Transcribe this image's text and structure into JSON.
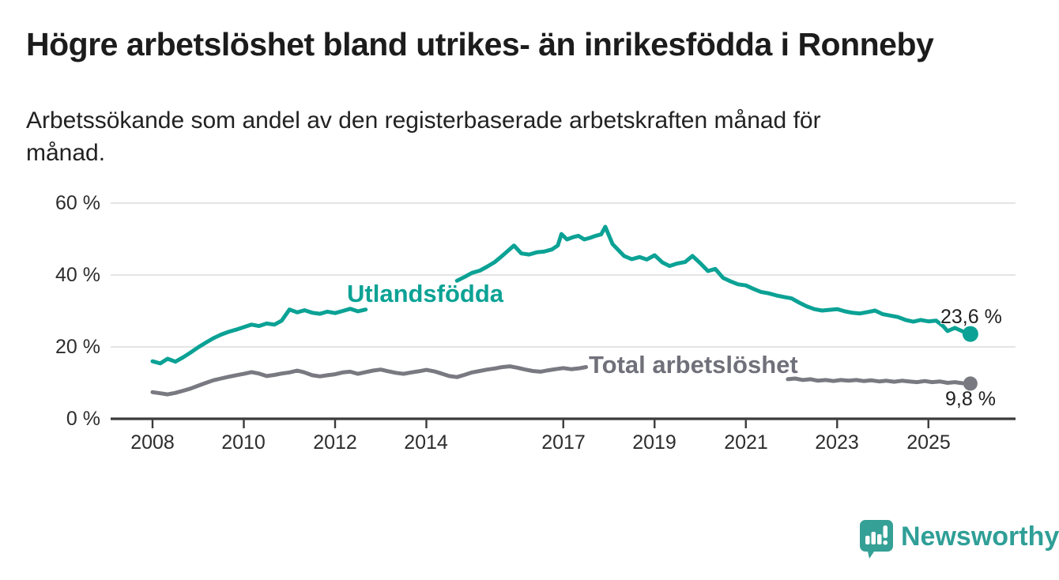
{
  "title": "Högre arbetslöshet bland utrikes- än inrikesfödda i Ronneby",
  "subtitle_lines": [
    "Arbetssökande som andel av den registerbaserade arbetskraften månad för",
    "månad."
  ],
  "branding": {
    "logo_text": "Newsworthy",
    "logo_icon": "speech-bubble-bar-chart-icon",
    "logo_color": "#35a096"
  },
  "colors": {
    "teal_series": "#0ba295",
    "gray_series": "#797981",
    "grid": "#dcdcdc",
    "axis": "#3b3b3b",
    "text": "#2d2d2d"
  },
  "chart_data": {
    "type": "line",
    "title": "Högre arbetslöshet bland utrikes- än inrikesfödda i Ronneby",
    "subtitle": "Arbetssökande som andel av den registerbaserade arbetskraften månad för månad.",
    "unit": "%",
    "grid": true,
    "x_range": [
      2007.1,
      2026.9
    ],
    "y_range": [
      0,
      60
    ],
    "y_ticks": [
      0,
      20,
      40,
      60
    ],
    "y_tick_labels": [
      "0 %",
      "20 %",
      "40 %",
      "60 %"
    ],
    "x_ticks": [
      2008,
      2010,
      2012,
      2014,
      2017,
      2019,
      2021,
      2023,
      2025
    ],
    "series": [
      {
        "name": "Utlandsfödda",
        "color": "#0ba295",
        "end_value": 23.6,
        "end_label": "23,6 %",
        "segments": [
          [
            [
              2008.0,
              16.0
            ],
            [
              2008.17,
              15.4
            ],
            [
              2008.33,
              16.7
            ],
            [
              2008.5,
              15.9
            ],
            [
              2008.67,
              17.1
            ],
            [
              2008.83,
              18.4
            ],
            [
              2009.0,
              19.9
            ],
            [
              2009.17,
              21.2
            ],
            [
              2009.33,
              22.4
            ],
            [
              2009.5,
              23.4
            ],
            [
              2009.67,
              24.2
            ],
            [
              2009.83,
              24.8
            ],
            [
              2010.0,
              25.5
            ],
            [
              2010.17,
              26.2
            ],
            [
              2010.33,
              25.8
            ],
            [
              2010.5,
              26.5
            ],
            [
              2010.67,
              26.2
            ],
            [
              2010.83,
              27.3
            ],
            [
              2011.0,
              30.4
            ],
            [
              2011.17,
              29.6
            ],
            [
              2011.33,
              30.2
            ],
            [
              2011.5,
              29.5
            ],
            [
              2011.67,
              29.2
            ],
            [
              2011.83,
              29.8
            ],
            [
              2012.0,
              29.4
            ],
            [
              2012.17,
              30.0
            ],
            [
              2012.33,
              30.6
            ],
            [
              2012.5,
              29.9
            ],
            [
              2012.67,
              30.4
            ]
          ],
          [
            [
              2014.67,
              38.4
            ],
            [
              2014.83,
              39.4
            ],
            [
              2015.0,
              40.6
            ],
            [
              2015.17,
              41.2
            ],
            [
              2015.33,
              42.3
            ],
            [
              2015.5,
              43.6
            ],
            [
              2015.67,
              45.4
            ],
            [
              2015.83,
              47.2
            ],
            [
              2015.92,
              48.2
            ],
            [
              2016.08,
              46.0
            ],
            [
              2016.25,
              45.7
            ],
            [
              2016.42,
              46.3
            ],
            [
              2016.58,
              46.5
            ],
            [
              2016.75,
              47.1
            ],
            [
              2016.88,
              48.2
            ],
            [
              2016.96,
              51.4
            ],
            [
              2017.08,
              49.9
            ],
            [
              2017.21,
              50.5
            ],
            [
              2017.33,
              50.9
            ],
            [
              2017.46,
              49.9
            ],
            [
              2017.58,
              50.3
            ],
            [
              2017.71,
              50.9
            ],
            [
              2017.83,
              51.3
            ],
            [
              2017.92,
              53.4
            ],
            [
              2018.08,
              48.6
            ],
            [
              2018.21,
              46.9
            ],
            [
              2018.33,
              45.3
            ],
            [
              2018.5,
              44.4
            ],
            [
              2018.67,
              45.0
            ],
            [
              2018.83,
              44.3
            ],
            [
              2019.0,
              45.5
            ],
            [
              2019.17,
              43.5
            ],
            [
              2019.33,
              42.5
            ],
            [
              2019.5,
              43.2
            ],
            [
              2019.67,
              43.6
            ],
            [
              2019.83,
              45.3
            ],
            [
              2020.0,
              43.3
            ],
            [
              2020.17,
              41.1
            ],
            [
              2020.33,
              41.7
            ],
            [
              2020.5,
              39.2
            ],
            [
              2020.67,
              38.2
            ],
            [
              2020.83,
              37.4
            ],
            [
              2021.0,
              37.1
            ],
            [
              2021.17,
              36.1
            ],
            [
              2021.33,
              35.3
            ],
            [
              2021.5,
              34.9
            ],
            [
              2021.67,
              34.3
            ],
            [
              2021.83,
              33.9
            ],
            [
              2022.0,
              33.5
            ],
            [
              2022.17,
              32.3
            ],
            [
              2022.33,
              31.3
            ],
            [
              2022.5,
              30.5
            ],
            [
              2022.67,
              30.1
            ],
            [
              2022.83,
              30.3
            ],
            [
              2023.0,
              30.5
            ],
            [
              2023.17,
              29.9
            ],
            [
              2023.33,
              29.5
            ],
            [
              2023.5,
              29.3
            ],
            [
              2023.67,
              29.7
            ],
            [
              2023.83,
              30.1
            ],
            [
              2024.0,
              29.1
            ],
            [
              2024.17,
              28.7
            ],
            [
              2024.33,
              28.3
            ],
            [
              2024.5,
              27.5
            ],
            [
              2024.67,
              27.0
            ],
            [
              2024.83,
              27.5
            ],
            [
              2025.0,
              27.1
            ],
            [
              2025.17,
              27.3
            ],
            [
              2025.33,
              25.7
            ],
            [
              2025.42,
              24.4
            ],
            [
              2025.58,
              25.3
            ],
            [
              2025.75,
              24.3
            ],
            [
              2025.92,
              23.6
            ]
          ]
        ]
      },
      {
        "name": "Total arbetslöshet",
        "color": "#797981",
        "end_value": 9.8,
        "end_label": "9,8 %",
        "segments": [
          [
            [
              2008.0,
              7.4
            ],
            [
              2008.17,
              7.1
            ],
            [
              2008.33,
              6.8
            ],
            [
              2008.5,
              7.2
            ],
            [
              2008.67,
              7.8
            ],
            [
              2008.83,
              8.4
            ],
            [
              2009.0,
              9.2
            ],
            [
              2009.17,
              10.0
            ],
            [
              2009.33,
              10.7
            ],
            [
              2009.5,
              11.2
            ],
            [
              2009.67,
              11.7
            ],
            [
              2009.83,
              12.1
            ],
            [
              2010.0,
              12.5
            ],
            [
              2010.17,
              13.0
            ],
            [
              2010.33,
              12.6
            ],
            [
              2010.5,
              11.9
            ],
            [
              2010.67,
              12.2
            ],
            [
              2010.83,
              12.6
            ],
            [
              2011.0,
              12.9
            ],
            [
              2011.17,
              13.4
            ],
            [
              2011.33,
              12.9
            ],
            [
              2011.5,
              12.1
            ],
            [
              2011.67,
              11.8
            ],
            [
              2011.83,
              12.1
            ],
            [
              2012.0,
              12.4
            ],
            [
              2012.17,
              12.9
            ],
            [
              2012.33,
              13.1
            ],
            [
              2012.5,
              12.5
            ],
            [
              2012.67,
              13.0
            ],
            [
              2012.83,
              13.4
            ],
            [
              2013.0,
              13.7
            ],
            [
              2013.17,
              13.2
            ],
            [
              2013.33,
              12.8
            ],
            [
              2013.5,
              12.5
            ],
            [
              2013.67,
              12.9
            ],
            [
              2013.83,
              13.2
            ],
            [
              2014.0,
              13.6
            ],
            [
              2014.17,
              13.2
            ],
            [
              2014.33,
              12.6
            ],
            [
              2014.5,
              11.9
            ],
            [
              2014.67,
              11.6
            ],
            [
              2014.83,
              12.2
            ],
            [
              2015.0,
              12.9
            ],
            [
              2015.17,
              13.3
            ],
            [
              2015.33,
              13.7
            ],
            [
              2015.5,
              14.0
            ],
            [
              2015.67,
              14.4
            ],
            [
              2015.83,
              14.6
            ],
            [
              2016.0,
              14.2
            ],
            [
              2016.17,
              13.7
            ],
            [
              2016.33,
              13.3
            ],
            [
              2016.5,
              13.1
            ],
            [
              2016.67,
              13.5
            ],
            [
              2016.83,
              13.8
            ],
            [
              2017.0,
              14.1
            ],
            [
              2017.17,
              13.8
            ],
            [
              2017.33,
              14.0
            ],
            [
              2017.5,
              14.4
            ]
          ],
          [
            [
              2021.92,
              11.0
            ],
            [
              2022.08,
              11.2
            ],
            [
              2022.25,
              10.8
            ],
            [
              2022.42,
              11.0
            ],
            [
              2022.58,
              10.6
            ],
            [
              2022.75,
              10.8
            ],
            [
              2022.92,
              10.5
            ],
            [
              2023.08,
              10.8
            ],
            [
              2023.25,
              10.6
            ],
            [
              2023.42,
              10.8
            ],
            [
              2023.58,
              10.5
            ],
            [
              2023.75,
              10.7
            ],
            [
              2023.92,
              10.4
            ],
            [
              2024.08,
              10.6
            ],
            [
              2024.25,
              10.3
            ],
            [
              2024.42,
              10.6
            ],
            [
              2024.58,
              10.4
            ],
            [
              2024.75,
              10.2
            ],
            [
              2024.92,
              10.5
            ],
            [
              2025.08,
              10.2
            ],
            [
              2025.25,
              10.4
            ],
            [
              2025.42,
              10.0
            ],
            [
              2025.58,
              10.2
            ],
            [
              2025.75,
              9.9
            ],
            [
              2025.92,
              9.8
            ]
          ]
        ]
      }
    ]
  }
}
